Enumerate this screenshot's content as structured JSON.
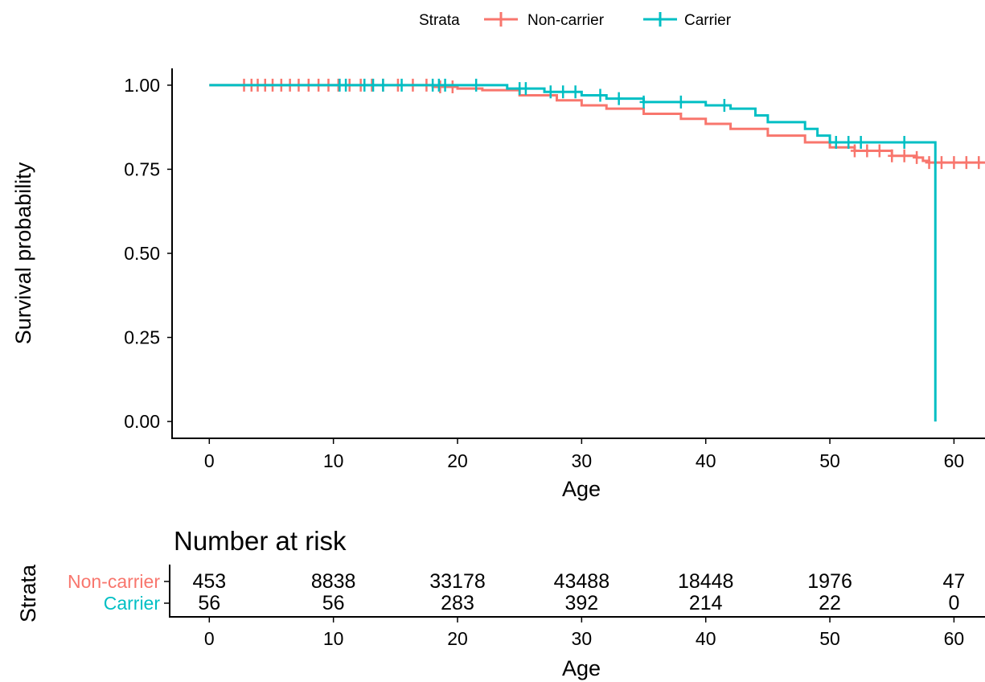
{
  "chart_data": [
    {
      "type": "line",
      "subtype": "kaplan-meier",
      "legend": {
        "title": "Strata",
        "placement": "top"
      },
      "xlabel": "Age",
      "ylabel": "Survival probability",
      "xlim": [
        -3,
        62.5
      ],
      "ylim": [
        -0.05,
        1.05
      ],
      "xticks": [
        0,
        10,
        20,
        30,
        40,
        50,
        60
      ],
      "yticks": [
        0.0,
        0.25,
        0.5,
        0.75,
        1.0
      ],
      "ytick_labels": [
        "0.00",
        "0.25",
        "0.50",
        "0.75",
        "1.00"
      ],
      "grid": false,
      "series": [
        {
          "name": "Non-carrier",
          "color": "#F8766D",
          "x": [
            0,
            18,
            20,
            22,
            25,
            28,
            30,
            32,
            35,
            38,
            40,
            42,
            45,
            48,
            50,
            52,
            55,
            57,
            57.5,
            58,
            62.5
          ],
          "y": [
            1.0,
            0.995,
            0.99,
            0.985,
            0.97,
            0.955,
            0.94,
            0.93,
            0.915,
            0.9,
            0.885,
            0.87,
            0.85,
            0.83,
            0.815,
            0.805,
            0.79,
            0.785,
            0.775,
            0.77,
            0.77
          ],
          "censor_x": [
            2.8,
            3.4,
            3.9,
            4.5,
            5.1,
            5.8,
            6.5,
            7.2,
            8.0,
            8.8,
            9.6,
            10.4,
            11.3,
            12.2,
            13.1,
            14.0,
            15.2,
            16.4,
            17.5,
            18.6,
            19.6,
            52,
            53,
            54,
            55,
            56,
            57,
            58,
            59,
            60,
            61,
            62
          ]
        },
        {
          "name": "Carrier",
          "color": "#00BFC4",
          "x": [
            0,
            21.5,
            24,
            27,
            30,
            32,
            35,
            38,
            40,
            42,
            44,
            45,
            47,
            48,
            49,
            50,
            52,
            58.5,
            58.5
          ],
          "y": [
            1.0,
            1.0,
            0.99,
            0.98,
            0.97,
            0.96,
            0.95,
            0.95,
            0.94,
            0.93,
            0.91,
            0.89,
            0.89,
            0.87,
            0.85,
            0.83,
            0.83,
            0.83,
            0.0
          ],
          "censor_x": [
            10.5,
            11.0,
            12.5,
            13.2,
            14.0,
            15.5,
            18.0,
            18.5,
            19.0,
            21.5,
            25.0,
            25.5,
            27.5,
            28.5,
            29.5,
            31.5,
            33.0,
            35.0,
            38.0,
            41.5,
            50.5,
            51.5,
            52.5,
            56.0
          ]
        }
      ]
    },
    {
      "type": "table",
      "title": "Number at risk",
      "ylabel": "Strata",
      "xlabel": "Age",
      "xticks": [
        0,
        10,
        20,
        30,
        40,
        50,
        60
      ],
      "rows": [
        {
          "name": "Non-carrier",
          "color": "#F8766D",
          "values": [
            "453",
            "8838",
            "33178",
            "43488",
            "18448",
            "1976",
            "47"
          ]
        },
        {
          "name": "Carrier",
          "color": "#00BFC4",
          "values": [
            "56",
            "56",
            "283",
            "392",
            "214",
            "22",
            "0"
          ]
        }
      ]
    }
  ]
}
